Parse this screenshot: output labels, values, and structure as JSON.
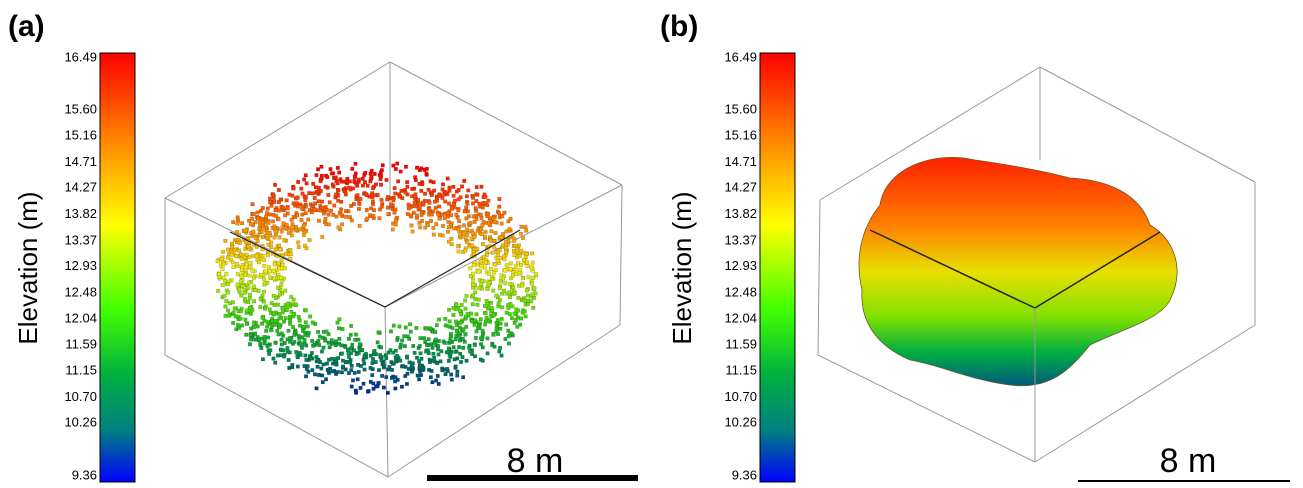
{
  "panels": [
    {
      "label": "(a)",
      "colorbar_title": "Elevation (m)",
      "scale_bar": "8 m",
      "colorbar_ticks": [
        "16.49",
        "15.60",
        "15.16",
        "14.71",
        "14.27",
        "13.82",
        "13.37",
        "12.93",
        "12.48",
        "12.04",
        "11.59",
        "11.15",
        "10.70",
        "10.26",
        "9.36"
      ]
    },
    {
      "label": "(b)",
      "colorbar_title": "Elevation (m)",
      "scale_bar": "8 m",
      "colorbar_ticks": [
        "16.49",
        "15.60",
        "15.16",
        "14.71",
        "14.27",
        "13.82",
        "13.37",
        "12.93",
        "12.48",
        "12.04",
        "11.59",
        "11.15",
        "10.70",
        "10.26",
        "9.36"
      ]
    }
  ]
}
